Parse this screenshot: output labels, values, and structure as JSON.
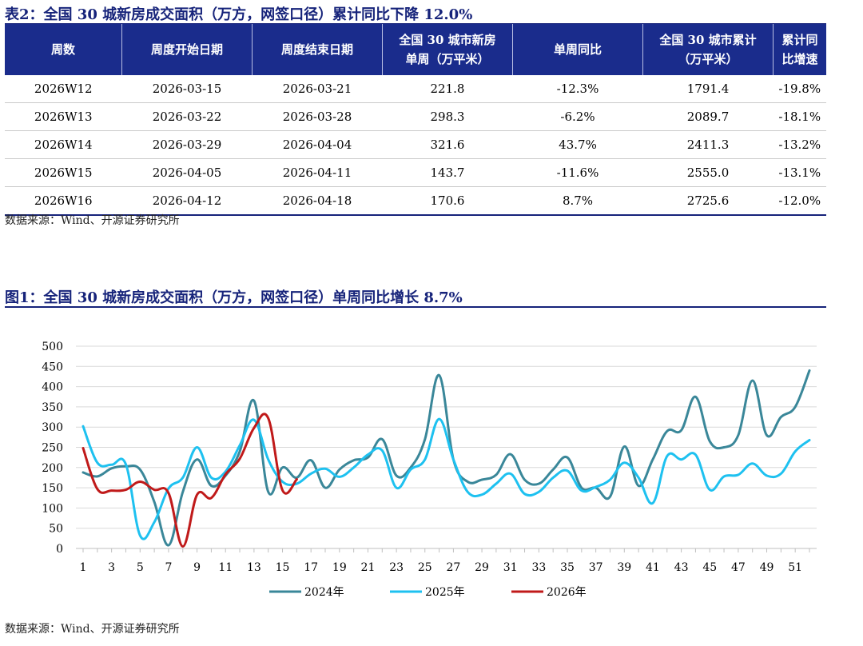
{
  "table": {
    "title": "表2：全国 30 城新房成交面积（万方，网签口径）累计同比下降 12.0%",
    "headers": [
      [
        "周数"
      ],
      [
        "周度开始日期"
      ],
      [
        "周度结束日期"
      ],
      [
        "全国 30 城市新房",
        "单周（万平米）"
      ],
      [
        "单周同比"
      ],
      [
        "全国 30 城市累计",
        "（万平米）"
      ],
      [
        "累计同比增速"
      ]
    ],
    "rows": [
      [
        "2026W12",
        "2026-03-15",
        "2026-03-21",
        "221.8",
        "-12.3%",
        "1791.4",
        "-19.8%"
      ],
      [
        "2026W13",
        "2026-03-22",
        "2026-03-28",
        "298.3",
        "-6.2%",
        "2089.7",
        "-18.1%"
      ],
      [
        "2026W14",
        "2026-03-29",
        "2026-04-04",
        "321.6",
        "43.7%",
        "2411.3",
        "-13.2%"
      ],
      [
        "2026W15",
        "2026-04-05",
        "2026-04-11",
        "143.7",
        "-11.6%",
        "2555.0",
        "-13.1%"
      ],
      [
        "2026W16",
        "2026-04-12",
        "2026-04-18",
        "170.6",
        "8.7%",
        "2725.6",
        "-12.0%"
      ]
    ],
    "source": "数据来源：Wind、开源证券研究所"
  },
  "figure": {
    "title": "图1：全国 30 城新房成交面积（万方，网签口径）单周同比增长 8.7%",
    "source": "数据来源：Wind、开源证券研究所"
  },
  "chart_data": {
    "type": "line",
    "title": "",
    "xlabel": "",
    "ylabel": "",
    "ylim": [
      0,
      500
    ],
    "yticks": [
      0,
      50,
      100,
      150,
      200,
      250,
      300,
      350,
      400,
      450,
      500
    ],
    "xlim": [
      1,
      52
    ],
    "xticks": [
      1,
      3,
      5,
      7,
      9,
      11,
      13,
      15,
      17,
      19,
      21,
      23,
      25,
      27,
      29,
      31,
      33,
      35,
      37,
      39,
      41,
      43,
      45,
      47,
      49,
      51
    ],
    "grid": "horizontal",
    "legend_position": "bottom-center",
    "smooth": true,
    "series": [
      {
        "name": "2024年",
        "color": "#3a8799",
        "values": [
          188,
          178,
          198,
          203,
          195,
          115,
          8,
          140,
          220,
          155,
          180,
          240,
          365,
          140,
          200,
          175,
          218,
          150,
          195,
          218,
          225,
          270,
          180,
          200,
          270,
          428,
          220,
          165,
          170,
          182,
          233,
          170,
          160,
          195,
          225,
          150,
          150,
          128,
          252,
          155,
          220,
          290,
          292,
          375,
          265,
          250,
          280,
          415,
          280,
          325,
          350,
          440
        ]
      },
      {
        "name": "2025年",
        "color": "#1ec1f0",
        "values": [
          302,
          212,
          207,
          208,
          32,
          65,
          148,
          175,
          250,
          175,
          190,
          255,
          318,
          220,
          165,
          160,
          185,
          197,
          177,
          200,
          232,
          242,
          150,
          195,
          220,
          320,
          220,
          140,
          133,
          160,
          185,
          135,
          140,
          175,
          192,
          143,
          152,
          170,
          212,
          175,
          112,
          228,
          220,
          232,
          145,
          178,
          182,
          210,
          180,
          185,
          240,
          268
        ]
      },
      {
        "name": "2026年",
        "color": "#c01a1a",
        "values": [
          248,
          147,
          143,
          145,
          165,
          145,
          137,
          5,
          133,
          125,
          183,
          222,
          298,
          322,
          144,
          171
        ]
      }
    ]
  }
}
